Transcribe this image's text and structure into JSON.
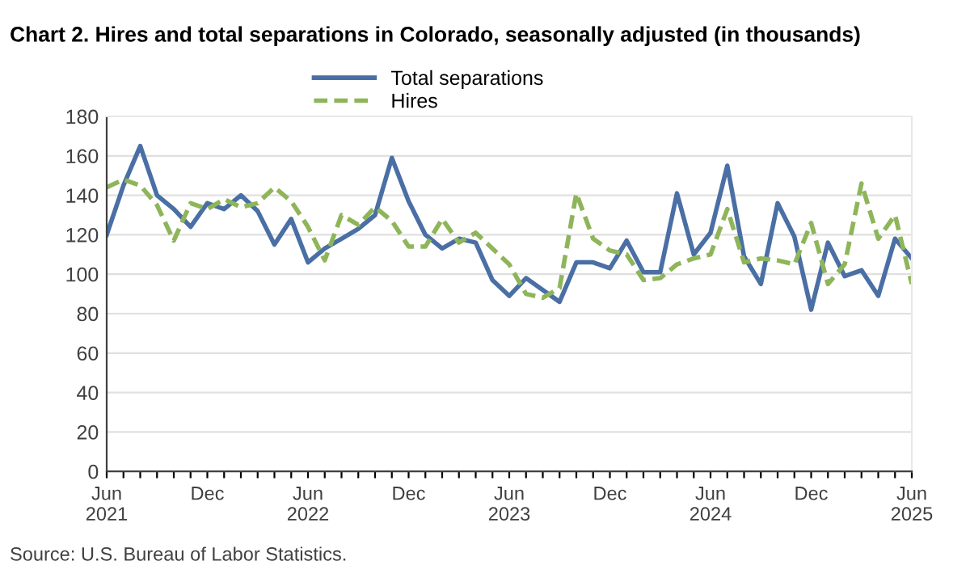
{
  "chart_data": {
    "type": "line",
    "title": "Chart 2. Hires and total separations in Colorado, seasonally adjusted (in thousands)",
    "categories": [
      "Jun\n2021",
      null,
      null,
      null,
      null,
      null,
      "Dec",
      null,
      null,
      null,
      null,
      null,
      "Jun\n2022",
      null,
      null,
      null,
      null,
      null,
      "Dec",
      null,
      null,
      null,
      null,
      null,
      "Jun\n2023",
      null,
      null,
      null,
      null,
      null,
      "Dec",
      null,
      null,
      null,
      null,
      null,
      "Jun\n2024",
      null,
      null,
      null,
      null,
      null,
      "Dec",
      null,
      null,
      null,
      null,
      null,
      "Jun\n2025"
    ],
    "series": [
      {
        "name": "Total separations",
        "color": "#4a6fa5",
        "line_style": "solid",
        "values": [
          120,
          145,
          165,
          140,
          133,
          124,
          136,
          133,
          140,
          132,
          115,
          128,
          106,
          113,
          118,
          123,
          130,
          159,
          137,
          120,
          113,
          118,
          116,
          97,
          89,
          98,
          92,
          86,
          106,
          106,
          103,
          117,
          101,
          101,
          141,
          110,
          121,
          155,
          109,
          95,
          136,
          119,
          82,
          116,
          99,
          102,
          89,
          118,
          108
        ]
      },
      {
        "name": "Hires",
        "color": "#8fb55a",
        "line_style": "dashed",
        "values": [
          144,
          148,
          145,
          135,
          117,
          136,
          133,
          138,
          134,
          136,
          144,
          137,
          124,
          107,
          130,
          125,
          134,
          127,
          114,
          114,
          128,
          116,
          121,
          113,
          105,
          90,
          88,
          93,
          141,
          118,
          112,
          110,
          97,
          98,
          105,
          108,
          110,
          133,
          106,
          108,
          107,
          105,
          126,
          95,
          105,
          146,
          118,
          130,
          95
        ]
      }
    ],
    "ylim": [
      0,
      180
    ],
    "yticks": [
      0,
      20,
      40,
      60,
      80,
      100,
      120,
      140,
      160,
      180
    ],
    "grid": "y",
    "legend": "top",
    "marker": "none",
    "annotations": [
      "Source: U.S. Bureau of Labor Statistics."
    ]
  }
}
